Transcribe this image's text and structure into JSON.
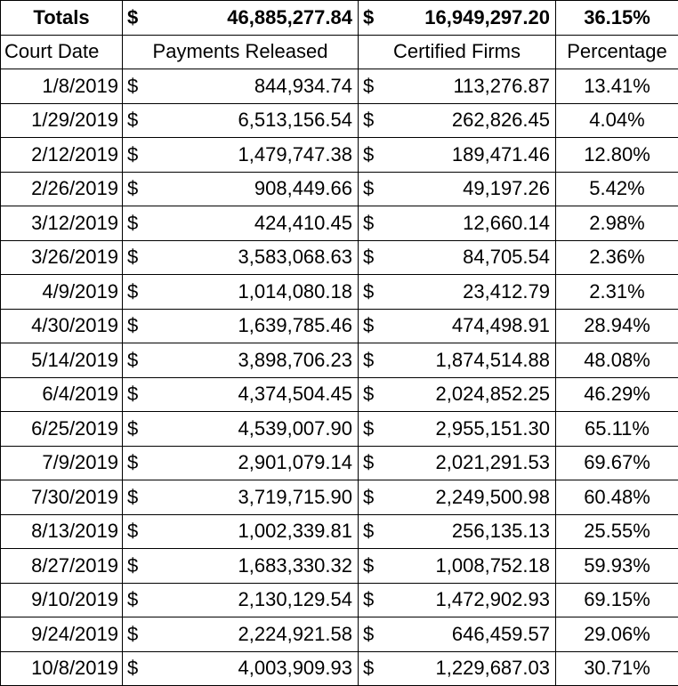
{
  "totals": {
    "label": "Totals",
    "payments_currency": "$",
    "payments": "46,885,277.84",
    "certified_currency": "$",
    "certified": "16,949,297.20",
    "percentage": "36.15%"
  },
  "headers": {
    "court_date": "Court Date",
    "payments_released": "Payments Released",
    "certified_firms": "Certified Firms",
    "percentage": "Percentage"
  },
  "currency_symbol": "$",
  "rows": [
    {
      "date": "1/8/2019",
      "payments": "844,934.74",
      "certified": "113,276.87",
      "percentage": "13.41%"
    },
    {
      "date": "1/29/2019",
      "payments": "6,513,156.54",
      "certified": "262,826.45",
      "percentage": "4.04%"
    },
    {
      "date": "2/12/2019",
      "payments": "1,479,747.38",
      "certified": "189,471.46",
      "percentage": "12.80%"
    },
    {
      "date": "2/26/2019",
      "payments": "908,449.66",
      "certified": "49,197.26",
      "percentage": "5.42%"
    },
    {
      "date": "3/12/2019",
      "payments": "424,410.45",
      "certified": "12,660.14",
      "percentage": "2.98%"
    },
    {
      "date": "3/26/2019",
      "payments": "3,583,068.63",
      "certified": "84,705.54",
      "percentage": "2.36%"
    },
    {
      "date": "4/9/2019",
      "payments": "1,014,080.18",
      "certified": "23,412.79",
      "percentage": "2.31%"
    },
    {
      "date": "4/30/2019",
      "payments": "1,639,785.46",
      "certified": "474,498.91",
      "percentage": "28.94%"
    },
    {
      "date": "5/14/2019",
      "payments": "3,898,706.23",
      "certified": "1,874,514.88",
      "percentage": "48.08%"
    },
    {
      "date": "6/4/2019",
      "payments": "4,374,504.45",
      "certified": "2,024,852.25",
      "percentage": "46.29%"
    },
    {
      "date": "6/25/2019",
      "payments": "4,539,007.90",
      "certified": "2,955,151.30",
      "percentage": "65.11%"
    },
    {
      "date": "7/9/2019",
      "payments": "2,901,079.14",
      "certified": "2,021,291.53",
      "percentage": "69.67%"
    },
    {
      "date": "7/30/2019",
      "payments": "3,719,715.90",
      "certified": "2,249,500.98",
      "percentage": "60.48%"
    },
    {
      "date": "8/13/2019",
      "payments": "1,002,339.81",
      "certified": "256,135.13",
      "percentage": "25.55%"
    },
    {
      "date": "8/27/2019",
      "payments": "1,683,330.32",
      "certified": "1,008,752.18",
      "percentage": "59.93%"
    },
    {
      "date": "9/10/2019",
      "payments": "2,130,129.54",
      "certified": "1,472,902.93",
      "percentage": "69.15%"
    },
    {
      "date": "9/24/2019",
      "payments": "2,224,921.58",
      "certified": "646,459.57",
      "percentage": "29.06%"
    },
    {
      "date": "10/8/2019",
      "payments": "4,003,909.93",
      "certified": "1,229,687.03",
      "percentage": "30.71%"
    }
  ]
}
